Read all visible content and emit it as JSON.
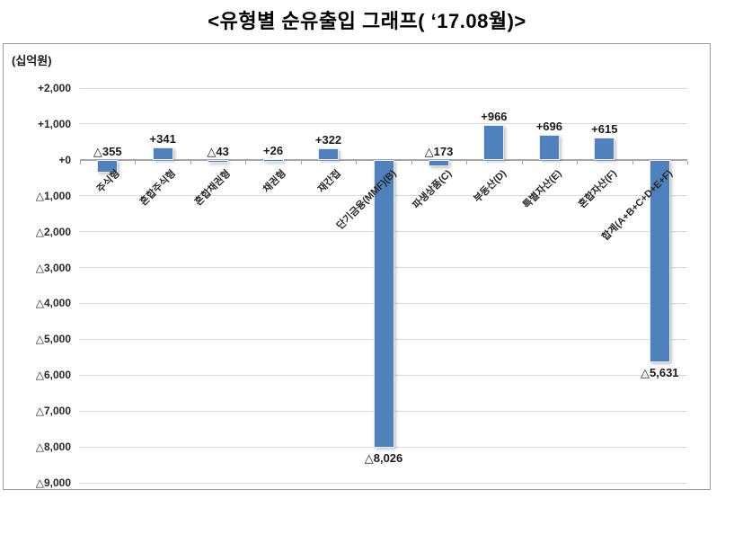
{
  "chart_data": {
    "type": "bar",
    "title": "<유형별 순유출입 그래프( ‘17.08월)>",
    "unit_label": "(십억원)",
    "bar_color": "#4f81bd",
    "gridline_color": "#d9d9d9",
    "zero_line_color": "#a6a6a6",
    "ymax": 2000,
    "ymin": -9000,
    "grid_step": 1000,
    "legend": "none",
    "grid": "horizontal",
    "categories": [
      "주식형",
      "혼합주식형",
      "혼합채권형",
      "채권형",
      "재간접",
      "단기금융(MMF)(B)",
      "파생상품(C)",
      "부동산(D)",
      "특별자산(E)",
      "혼합자산(F)",
      "합계(A+B+C+D+E+F)"
    ],
    "values": [
      -355,
      341,
      -43,
      26,
      322,
      -8026,
      -173,
      966,
      696,
      615,
      -5631
    ],
    "data_labels": [
      "△355",
      "+341",
      "△43",
      "+26",
      "+322",
      "△8,026",
      "△173",
      "+966",
      "+696",
      "+615",
      "△5,631"
    ],
    "label_placement": [
      "above_axis",
      "above_bar",
      "above_axis",
      "above_bar",
      "above_bar",
      "below_bar",
      "above_axis",
      "above_bar",
      "above_bar",
      "above_bar",
      "below_bar"
    ],
    "y_tick_labels": [
      "+2,000",
      "+1,000",
      "+0",
      "△1,000",
      "△2,000",
      "△3,000",
      "△4,000",
      "△5,000",
      "△6,000",
      "△7,000",
      "△8,000",
      "△9,000"
    ]
  }
}
